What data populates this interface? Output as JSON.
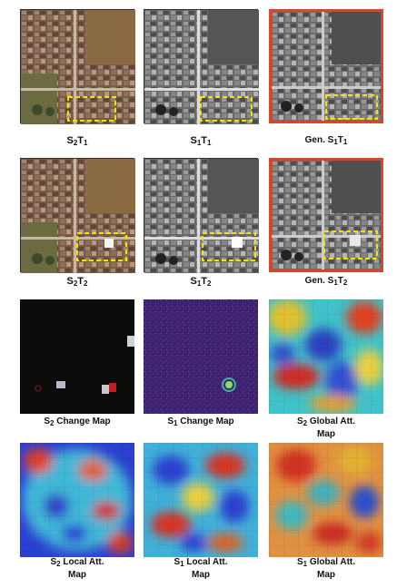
{
  "figure": {
    "rows": [
      {
        "panels": [
          {
            "id": "s2t1",
            "caption": "S2T1",
            "style": "color-satellite",
            "box": true
          },
          {
            "id": "s1t1",
            "caption": "S1T1",
            "style": "gray-sar",
            "box": true
          },
          {
            "id": "gen_s1t1",
            "caption": "Gen. S1T1",
            "style": "gray-generated",
            "box": true,
            "highlight_color": "#d9472b"
          }
        ]
      },
      {
        "panels": [
          {
            "id": "s2t2",
            "caption": "S2T2",
            "style": "color-satellite",
            "box": true
          },
          {
            "id": "s1t2",
            "caption": "S1T2",
            "style": "gray-sar",
            "box": true
          },
          {
            "id": "gen_s1t2",
            "caption": "Gen. S1T2",
            "style": "gray-generated",
            "box": true,
            "highlight_color": "#d9472b"
          }
        ]
      },
      {
        "panels": [
          {
            "id": "s2_change",
            "caption": "S2 Change Map",
            "style": "dark-change"
          },
          {
            "id": "s1_change",
            "caption": "S1 Change Map",
            "style": "purple-noise"
          },
          {
            "id": "s2_global",
            "caption": "S2 Global Att. Map",
            "style": "heatmap"
          }
        ]
      },
      {
        "panels": [
          {
            "id": "s2_local",
            "caption": "S2 Local Att. Map",
            "style": "heatmap"
          },
          {
            "id": "s1_local",
            "caption": "S1 Local Att. Map",
            "style": "heatmap"
          },
          {
            "id": "s1_global",
            "caption": "S1 Global Att. Map",
            "style": "heatmap"
          }
        ]
      }
    ],
    "change_box_color": "#f2e600"
  },
  "captions": {
    "r1c1": {
      "pre": "S",
      "s1": "2",
      "mid": "T",
      "s2": "1"
    },
    "r1c2": {
      "pre": "S",
      "s1": "1",
      "mid": "T",
      "s2": "1"
    },
    "r1c3": {
      "pre": "Gen. S",
      "s1": "1",
      "mid": "T",
      "s2": "1"
    },
    "r2c1": {
      "pre": "S",
      "s1": "2",
      "mid": "T",
      "s2": "2"
    },
    "r2c2": {
      "pre": "S",
      "s1": "1",
      "mid": "T",
      "s2": "2"
    },
    "r2c3": {
      "pre": "Gen. S",
      "s1": "1",
      "mid": "T",
      "s2": "2"
    },
    "r3c1": {
      "pre": "S",
      "s1": "2",
      "rest": " Change Map"
    },
    "r3c2": {
      "pre": "S",
      "s1": "1",
      "rest": " Change Map"
    },
    "r3c3": {
      "pre": "S",
      "s1": "2",
      "rest": " Global Att.",
      "line2": "Map"
    },
    "r4c1": {
      "pre": "S",
      "s1": "2",
      "rest": " Local Att.",
      "line2": "Map"
    },
    "r4c2": {
      "pre": "S",
      "s1": "1",
      "rest": " Local Att.",
      "line2": "Map"
    },
    "r4c3": {
      "pre": "S",
      "s1": "1",
      "rest": " Global Att.",
      "line2": "Map"
    }
  }
}
